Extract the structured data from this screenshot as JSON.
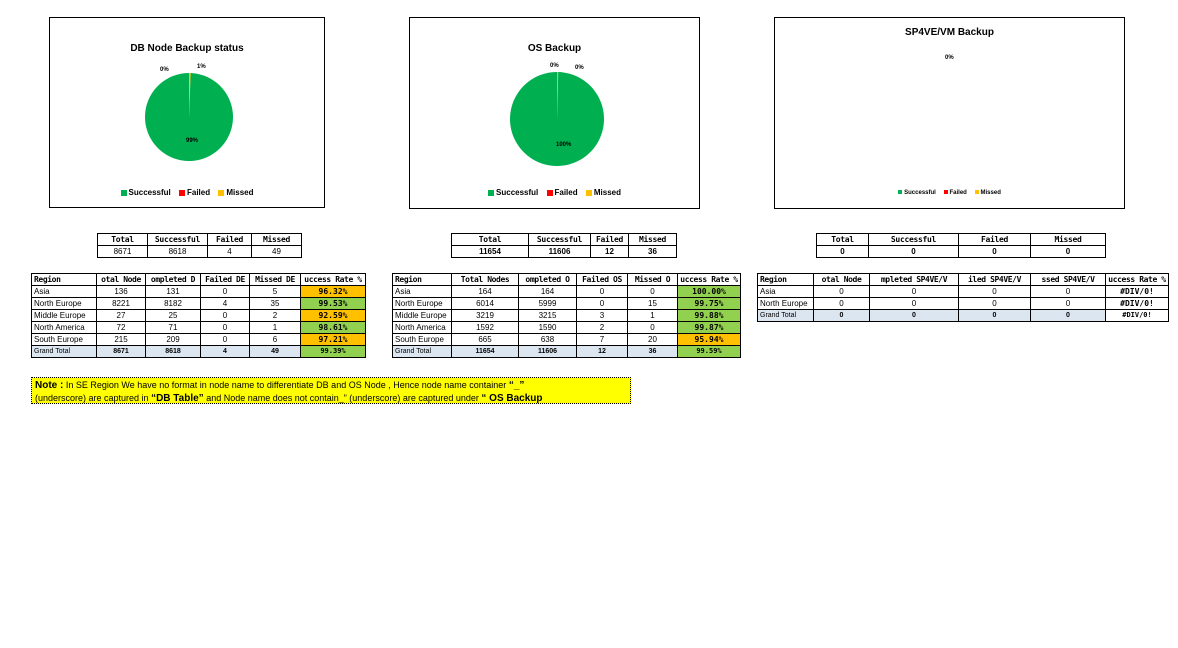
{
  "colors": {
    "successful": "#00b050",
    "failed": "#ff0000",
    "missed": "#ffc000",
    "good": "#92d050",
    "warn": "#ffc000",
    "total_row": "#dce6f1"
  },
  "charts": [
    {
      "title": "DB Node Backup status",
      "legend": [
        "Successful",
        "Failed",
        "Missed"
      ],
      "labels": {
        "successful": "99%",
        "failed": "0%",
        "missed": "1%"
      },
      "chart_data": {
        "type": "pie",
        "categories": [
          "Successful",
          "Failed",
          "Missed"
        ],
        "values": [
          8618,
          4,
          49
        ]
      }
    },
    {
      "title": "OS Backup",
      "legend": [
        "Successful",
        "Failed",
        "Missed"
      ],
      "labels": {
        "successful": "100%",
        "failed": "0%",
        "missed": "0%"
      },
      "chart_data": {
        "type": "pie",
        "categories": [
          "Successful",
          "Failed",
          "Missed"
        ],
        "values": [
          11606,
          12,
          36
        ]
      }
    },
    {
      "title": "SP4VE/VM Backup",
      "legend": [
        "Successful",
        "Failed",
        "Missed"
      ],
      "labels": {
        "center": "0%"
      },
      "chart_data": {
        "type": "pie",
        "categories": [
          "Successful",
          "Failed",
          "Missed"
        ],
        "values": [
          0,
          0,
          0
        ]
      }
    }
  ],
  "summaries": [
    {
      "headers": [
        "Total",
        "Successful",
        "Failed",
        "Missed"
      ],
      "values": [
        "8671",
        "8618",
        "4",
        "49"
      ]
    },
    {
      "headers": [
        "Total",
        "Successful",
        "Failed",
        "Missed"
      ],
      "values": [
        "11654",
        "11606",
        "12",
        "36"
      ]
    },
    {
      "headers": [
        "Total",
        "Successful",
        "Failed",
        "Missed"
      ],
      "values": [
        "0",
        "0",
        "0",
        "0"
      ]
    }
  ],
  "region_tables": [
    {
      "headers": [
        "Region",
        "otal Node",
        "ompleted D",
        "Failed DE",
        "Missed DE",
        "uccess Rate %"
      ],
      "rows": [
        [
          "Asia",
          "136",
          "131",
          "0",
          "5",
          "96.32%"
        ],
        [
          "North Europe",
          "8221",
          "8182",
          "4",
          "35",
          "99.53%"
        ],
        [
          "Middle Europe",
          "27",
          "25",
          "0",
          "2",
          "92.59%"
        ],
        [
          "North America",
          "72",
          "71",
          "0",
          "1",
          "98.61%"
        ],
        [
          "South Europe",
          "215",
          "209",
          "0",
          "6",
          "97.21%"
        ]
      ],
      "rate_status": [
        "warn",
        "good",
        "warn",
        "good",
        "warn"
      ],
      "total": [
        "Grand Total",
        "8671",
        "8618",
        "4",
        "49",
        "99.39%"
      ]
    },
    {
      "headers": [
        "Region",
        "Total Nodes",
        "ompleted O",
        "Failed OS",
        "Missed O",
        "uccess Rate %"
      ],
      "rows": [
        [
          "Asia",
          "164",
          "164",
          "0",
          "0",
          "100.00%"
        ],
        [
          "North Europe",
          "6014",
          "5999",
          "0",
          "15",
          "99.75%"
        ],
        [
          "Middle Europe",
          "3219",
          "3215",
          "3",
          "1",
          "99.88%"
        ],
        [
          "North America",
          "1592",
          "1590",
          "2",
          "0",
          "99.87%"
        ],
        [
          "South Europe",
          "665",
          "638",
          "7",
          "20",
          "95.94%"
        ]
      ],
      "rate_status": [
        "good",
        "good",
        "good",
        "good",
        "warn"
      ],
      "total": [
        "Grand Total",
        "11654",
        "11606",
        "12",
        "36",
        "99.59%"
      ]
    },
    {
      "headers": [
        "Region",
        "otal Node",
        "mpleted SP4VE/V",
        "iled SP4VE/V",
        "ssed SP4VE/V",
        "uccess Rate %"
      ],
      "rows": [
        [
          "Asia",
          "0",
          "0",
          "0",
          "0",
          "#DIV/0!"
        ],
        [
          "North Europe",
          "0",
          "0",
          "0",
          "0",
          "#DIV/0!"
        ]
      ],
      "rate_status": [
        "none",
        "none"
      ],
      "total": [
        "Grand Total",
        "0",
        "0",
        "0",
        "0",
        "#DIV/0!"
      ]
    }
  ],
  "note": {
    "label": "Note :",
    "text1": "In SE Region We have no format in node name to differentiate DB and OS Node , Hence node name container",
    "q1": "“_”",
    "text2": "(underscore) are captured in",
    "q2": "“DB Table”",
    "text3": "and Node name does not contain_” (underscore)  are captured under",
    "q3": "“ OS Backup"
  }
}
